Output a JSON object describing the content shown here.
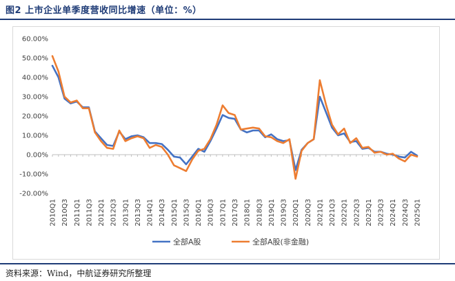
{
  "figure": {
    "title": "图2  上市企业单季度营收同比增速（单位：%）",
    "source": "资料来源：Wind，中航证券研究所整理"
  },
  "colors": {
    "series_a": "#4472c4",
    "series_b": "#ed7d31",
    "frame": "#d9d9d9",
    "axis": "#bfbfbf",
    "rule": "#1f3c77"
  },
  "chart_data": {
    "type": "line",
    "title": "",
    "xlabel": "",
    "ylabel": "",
    "ylim": [
      -20,
      60
    ],
    "yticks": [
      60,
      50,
      40,
      30,
      20,
      10,
      0,
      -10,
      -20
    ],
    "ytick_labels": [
      "60.00%",
      "50.00%",
      "40.00%",
      "30.00%",
      "20.00%",
      "10.00%",
      "0.00%",
      "-10.00%",
      "-20.00%"
    ],
    "grid": false,
    "legend": "bottom",
    "x": [
      "2010Q1",
      "2010Q2",
      "2010Q3",
      "2010Q4",
      "2011Q1",
      "2011Q2",
      "2011Q3",
      "2011Q4",
      "2012Q1",
      "2012Q2",
      "2012Q3",
      "2012Q4",
      "2013Q1",
      "2013Q2",
      "2013Q3",
      "2013Q4",
      "2014Q1",
      "2014Q2",
      "2014Q3",
      "2014Q4",
      "2015Q1",
      "2015Q2",
      "2015Q3",
      "2015Q4",
      "2016Q1",
      "2016Q2",
      "2016Q3",
      "2016Q4",
      "2017Q1",
      "2017Q2",
      "2017Q3",
      "2017Q4",
      "2018Q1",
      "2018Q2",
      "2018Q3",
      "2018Q4",
      "2019Q1",
      "2019Q2",
      "2019Q3",
      "2019Q4",
      "2020Q1",
      "2020Q2",
      "2020Q3",
      "2020Q4",
      "2021Q1",
      "2021Q2",
      "2021Q3",
      "2021Q4",
      "2022Q1",
      "2022Q2",
      "2022Q3",
      "2022Q4",
      "2023Q1",
      "2023Q2",
      "2023Q3",
      "2023Q4",
      "2024Q1",
      "2024Q2",
      "2024Q3",
      "2024Q4",
      "2025Q1"
    ],
    "xtick_labels": [
      "2010Q1",
      "2010Q3",
      "2011Q1",
      "2011Q3",
      "2012Q1",
      "2012Q3",
      "2013Q1",
      "2013Q3",
      "2014Q1",
      "2014Q3",
      "2015Q1",
      "2015Q3",
      "2016Q1",
      "2016Q3",
      "2017Q1",
      "2017Q3",
      "2018Q1",
      "2018Q3",
      "2019Q1",
      "2019Q3",
      "2020Q1",
      "2020Q3",
      "2021Q1",
      "2021Q3",
      "2022Q1",
      "2022Q3",
      "2023Q1",
      "2023Q3",
      "2024Q1",
      "2024Q3",
      "2025Q1"
    ],
    "series": [
      {
        "name": "全部A股",
        "values": [
          46,
          40,
          29,
          26.5,
          27.5,
          24.5,
          24.5,
          12,
          8.5,
          5,
          4.5,
          12,
          8,
          9.5,
          10,
          9,
          6,
          6,
          5.5,
          2.5,
          -1,
          -1.5,
          -5,
          -1,
          3,
          1.5,
          7,
          13.5,
          20.5,
          19,
          18.5,
          13,
          11.5,
          12.5,
          12.5,
          9,
          10.5,
          8,
          7,
          7.5,
          -8,
          2.5,
          6,
          8,
          30,
          22,
          14,
          10,
          11,
          6.5,
          7,
          3,
          3.5,
          1.5,
          1.5,
          0.5,
          0,
          -1,
          -1.5,
          1.5,
          -0.5
        ]
      },
      {
        "name": "全部A股(非金融)",
        "values": [
          51,
          43,
          30,
          27,
          28,
          24,
          24,
          11.5,
          7,
          3.5,
          3,
          12.5,
          7,
          8.5,
          9.5,
          8.5,
          3.5,
          5,
          4,
          0,
          -5.5,
          -7,
          -8.5,
          -2.5,
          2,
          3,
          8,
          15.5,
          25.5,
          21.5,
          20.5,
          13,
          13.5,
          14,
          13.5,
          9.5,
          9,
          7,
          6,
          8,
          -12.5,
          2,
          6,
          8,
          38.5,
          26,
          15.5,
          10.5,
          13.5,
          6,
          8.5,
          3.5,
          4,
          1,
          1.5,
          0,
          0.5,
          -2,
          -3.5,
          0,
          -1
        ]
      }
    ]
  }
}
